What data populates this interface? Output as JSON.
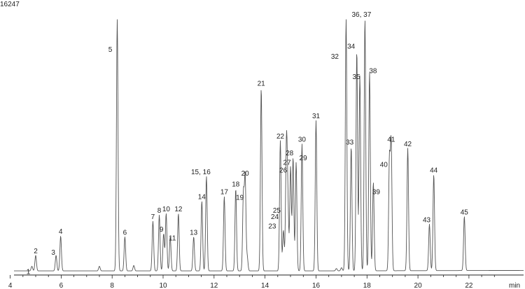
{
  "chart_data": {
    "type": "line",
    "y_max_label": "16247",
    "x_unit": "min",
    "xlim": [
      3.6,
      24.2
    ],
    "ylim": [
      0,
      16247
    ],
    "x_ticks": [
      4,
      6,
      8,
      10,
      12,
      14,
      16,
      18,
      20,
      22
    ],
    "peaks": [
      {
        "label": "1",
        "x": 4.85,
        "y": 300
      },
      {
        "label": "2",
        "x": 5.0,
        "y": 1000
      },
      {
        "label": "3",
        "x": 5.8,
        "y": 1000
      },
      {
        "label": "4",
        "x": 5.98,
        "y": 2250
      },
      {
        "label": "5",
        "x": 8.2,
        "y": 16247
      },
      {
        "label": "6",
        "x": 8.5,
        "y": 2200
      },
      {
        "label": "7",
        "x": 9.6,
        "y": 3200
      },
      {
        "label": "8",
        "x": 9.85,
        "y": 3600
      },
      {
        "label": "9",
        "x": 10.02,
        "y": 2400
      },
      {
        "label": "10",
        "x": 10.12,
        "y": 3700
      },
      {
        "label": "11",
        "x": 10.28,
        "y": 2200
      },
      {
        "label": "12",
        "x": 10.6,
        "y": 3700
      },
      {
        "label": "13",
        "x": 11.2,
        "y": 2200
      },
      {
        "label": "14",
        "x": 11.52,
        "y": 4500
      },
      {
        "label": "15, 16",
        "x": 11.7,
        "y": 6100
      },
      {
        "label": "17",
        "x": 12.4,
        "y": 4800
      },
      {
        "label": "18",
        "x": 12.85,
        "y": 5300
      },
      {
        "label": "19",
        "x": 13.15,
        "y": 4900
      },
      {
        "label": "20",
        "x": 13.22,
        "y": 6000
      },
      {
        "label": "21",
        "x": 13.85,
        "y": 11800
      },
      {
        "label": "22",
        "x": 14.6,
        "y": 8400
      },
      {
        "label": "23",
        "x": 14.72,
        "y": 2600
      },
      {
        "label": "24",
        "x": 14.82,
        "y": 3200
      },
      {
        "label": "25",
        "x": 14.9,
        "y": 3600
      },
      {
        "label": "26",
        "x": 14.85,
        "y": 6200
      },
      {
        "label": "27",
        "x": 15.0,
        "y": 6700
      },
      {
        "label": "28",
        "x": 15.1,
        "y": 7300
      },
      {
        "label": "29",
        "x": 15.22,
        "y": 7000
      },
      {
        "label": "30",
        "x": 15.45,
        "y": 8200
      },
      {
        "label": "31",
        "x": 16.0,
        "y": 9700
      },
      {
        "label": "32",
        "x": 17.18,
        "y": 16247
      },
      {
        "label": "33",
        "x": 17.38,
        "y": 8000
      },
      {
        "label": "34",
        "x": 17.6,
        "y": 14200
      },
      {
        "label": "35",
        "x": 17.72,
        "y": 12600
      },
      {
        "label": "36, 37",
        "x": 17.92,
        "y": 16247
      },
      {
        "label": "38",
        "x": 18.1,
        "y": 12800
      },
      {
        "label": "39",
        "x": 18.25,
        "y": 5700
      },
      {
        "label": "40",
        "x": 18.88,
        "y": 7100
      },
      {
        "label": "41",
        "x": 18.95,
        "y": 8200
      },
      {
        "label": "42",
        "x": 19.6,
        "y": 7900
      },
      {
        "label": "43",
        "x": 20.45,
        "y": 3000
      },
      {
        "label": "44",
        "x": 20.62,
        "y": 6200
      },
      {
        "label": "45",
        "x": 21.82,
        "y": 3500
      }
    ],
    "unlabeled_peaks": [
      {
        "x": 7.5,
        "y": 300
      },
      {
        "x": 8.85,
        "y": 350
      },
      {
        "x": 13.3,
        "y": 900
      },
      {
        "x": 16.8,
        "y": 150
      },
      {
        "x": 17.0,
        "y": 200
      }
    ]
  },
  "colors": {
    "trace": "#555555",
    "axis": "#222222",
    "background": "#ffffff"
  }
}
